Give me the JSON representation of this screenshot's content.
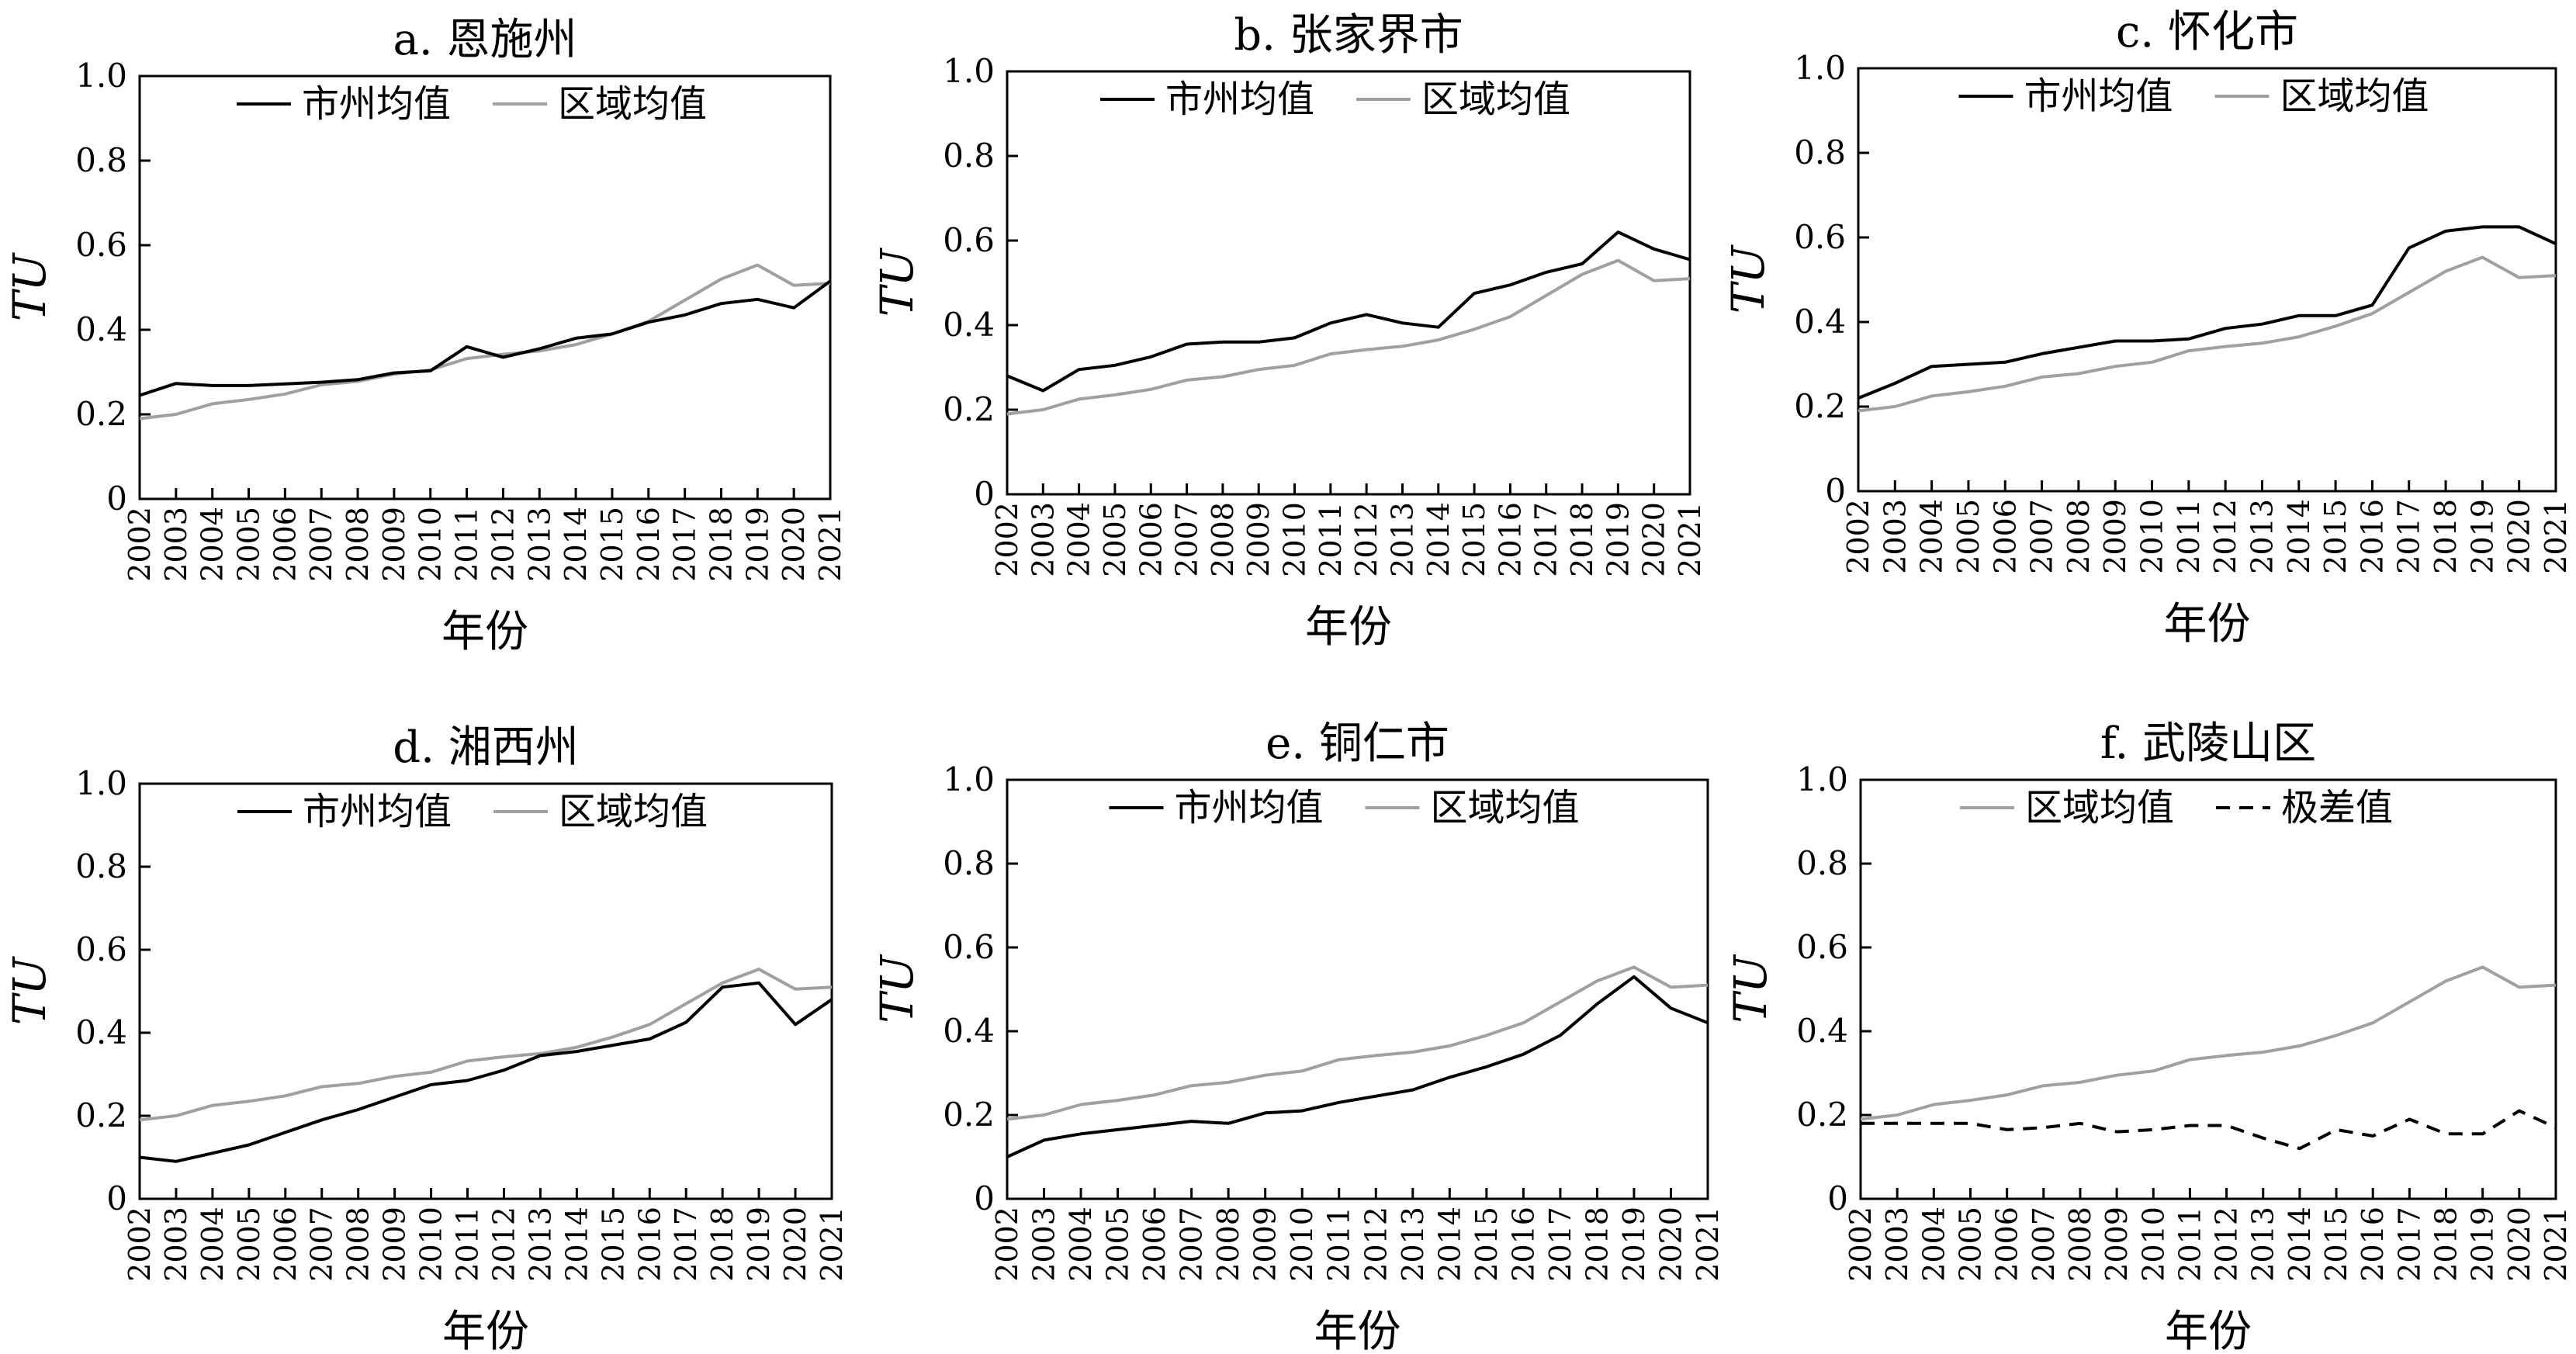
{
  "chart_data": [
    {
      "type": "line",
      "title": "a. 恩施州",
      "xlabel": "年份",
      "ylabel": "TU",
      "ylim": [
        0,
        1.0
      ],
      "yticks": [
        "0",
        "0.2",
        "0.4",
        "0.6",
        "0.8",
        "1.0"
      ],
      "x": [
        "2002",
        "2003",
        "2004",
        "2005",
        "2006",
        "2007",
        "2008",
        "2009",
        "2010",
        "2011",
        "2012",
        "2013",
        "2014",
        "2015",
        "2016",
        "2017",
        "2018",
        "2019",
        "2020",
        "2021"
      ],
      "legend_position": "top",
      "series": [
        {
          "name": "市州均值",
          "color": "#000000",
          "dash": "",
          "values": [
            0.245,
            0.273,
            0.268,
            0.268,
            0.272,
            0.276,
            0.282,
            0.298,
            0.303,
            0.36,
            0.335,
            0.355,
            0.38,
            0.39,
            0.418,
            0.435,
            0.462,
            0.472,
            0.452,
            0.515
          ]
        },
        {
          "name": "区域均值",
          "color": "#a0a0a0",
          "dash": "",
          "values": [
            0.19,
            0.2,
            0.225,
            0.235,
            0.248,
            0.27,
            0.278,
            0.295,
            0.305,
            0.332,
            0.342,
            0.35,
            0.365,
            0.39,
            0.42,
            0.47,
            0.52,
            0.553,
            0.505,
            0.51
          ]
        }
      ]
    },
    {
      "type": "line",
      "title": "b. 张家界市",
      "xlabel": "年份",
      "ylabel": "TU",
      "ylim": [
        0,
        1.0
      ],
      "yticks": [
        "0",
        "0.2",
        "0.4",
        "0.6",
        "0.8",
        "1.0"
      ],
      "x": [
        "2002",
        "2003",
        "2004",
        "2005",
        "2006",
        "2007",
        "2008",
        "2009",
        "2010",
        "2011",
        "2012",
        "2013",
        "2014",
        "2015",
        "2016",
        "2017",
        "2018",
        "2019",
        "2020",
        "2021"
      ],
      "legend_position": "top",
      "series": [
        {
          "name": "市州均值",
          "color": "#000000",
          "dash": "",
          "values": [
            0.28,
            0.245,
            0.295,
            0.305,
            0.325,
            0.355,
            0.36,
            0.36,
            0.37,
            0.405,
            0.425,
            0.405,
            0.395,
            0.475,
            0.495,
            0.525,
            0.545,
            0.62,
            0.58,
            0.555
          ]
        },
        {
          "name": "区域均值",
          "color": "#a0a0a0",
          "dash": "",
          "values": [
            0.19,
            0.2,
            0.225,
            0.235,
            0.248,
            0.27,
            0.278,
            0.295,
            0.305,
            0.332,
            0.342,
            0.35,
            0.365,
            0.39,
            0.42,
            0.47,
            0.52,
            0.553,
            0.505,
            0.51
          ]
        }
      ]
    },
    {
      "type": "line",
      "title": "c. 怀化市",
      "xlabel": "年份",
      "ylabel": "TU",
      "ylim": [
        0,
        1.0
      ],
      "yticks": [
        "0",
        "0.2",
        "0.4",
        "0.6",
        "0.8",
        "1.0"
      ],
      "x": [
        "2002",
        "2003",
        "2004",
        "2005",
        "2006",
        "2007",
        "2008",
        "2009",
        "2010",
        "2011",
        "2012",
        "2013",
        "2014",
        "2015",
        "2016",
        "2017",
        "2018",
        "2019",
        "2020",
        "2021"
      ],
      "legend_position": "top",
      "series": [
        {
          "name": "市州均值",
          "color": "#000000",
          "dash": "",
          "values": [
            0.22,
            0.255,
            0.295,
            0.3,
            0.305,
            0.325,
            0.34,
            0.355,
            0.355,
            0.36,
            0.385,
            0.395,
            0.415,
            0.415,
            0.44,
            0.575,
            0.615,
            0.625,
            0.625,
            0.585
          ]
        },
        {
          "name": "区域均值",
          "color": "#a0a0a0",
          "dash": "",
          "values": [
            0.19,
            0.2,
            0.225,
            0.235,
            0.248,
            0.27,
            0.278,
            0.295,
            0.305,
            0.332,
            0.342,
            0.35,
            0.365,
            0.39,
            0.42,
            0.47,
            0.52,
            0.553,
            0.505,
            0.51
          ]
        }
      ]
    },
    {
      "type": "line",
      "title": "d. 湘西州",
      "xlabel": "年份",
      "ylabel": "TU",
      "ylim": [
        0,
        1.0
      ],
      "yticks": [
        "0",
        "0.2",
        "0.4",
        "0.6",
        "0.8",
        "1.0"
      ],
      "x": [
        "2002",
        "2003",
        "2004",
        "2005",
        "2006",
        "2007",
        "2008",
        "2009",
        "2010",
        "2011",
        "2012",
        "2013",
        "2014",
        "2015",
        "2016",
        "2017",
        "2018",
        "2019",
        "2020",
        "2021"
      ],
      "legend_position": "top",
      "series": [
        {
          "name": "市州均值",
          "color": "#000000",
          "dash": "",
          "values": [
            0.1,
            0.09,
            0.11,
            0.13,
            0.16,
            0.19,
            0.215,
            0.245,
            0.275,
            0.285,
            0.31,
            0.345,
            0.355,
            0.37,
            0.385,
            0.425,
            0.51,
            0.52,
            0.42,
            0.48
          ]
        },
        {
          "name": "区域均值",
          "color": "#a0a0a0",
          "dash": "",
          "values": [
            0.19,
            0.2,
            0.225,
            0.235,
            0.248,
            0.27,
            0.278,
            0.295,
            0.305,
            0.332,
            0.342,
            0.35,
            0.365,
            0.39,
            0.42,
            0.47,
            0.52,
            0.553,
            0.505,
            0.51
          ]
        }
      ]
    },
    {
      "type": "line",
      "title": "e. 铜仁市",
      "xlabel": "年份",
      "ylabel": "TU",
      "ylim": [
        0,
        1.0
      ],
      "yticks": [
        "0",
        "0.2",
        "0.4",
        "0.6",
        "0.8",
        "1.0"
      ],
      "x": [
        "2002",
        "2003",
        "2004",
        "2005",
        "2006",
        "2007",
        "2008",
        "2009",
        "2010",
        "2011",
        "2012",
        "2013",
        "2014",
        "2015",
        "2016",
        "2017",
        "2018",
        "2019",
        "2020",
        "2021"
      ],
      "legend_position": "top",
      "series": [
        {
          "name": "市州均值",
          "color": "#000000",
          "dash": "",
          "values": [
            0.1,
            0.14,
            0.155,
            0.165,
            0.175,
            0.185,
            0.18,
            0.205,
            0.21,
            0.23,
            0.245,
            0.26,
            0.29,
            0.315,
            0.345,
            0.39,
            0.465,
            0.53,
            0.455,
            0.42
          ]
        },
        {
          "name": "区域均值",
          "color": "#a0a0a0",
          "dash": "",
          "values": [
            0.19,
            0.2,
            0.225,
            0.235,
            0.248,
            0.27,
            0.278,
            0.295,
            0.305,
            0.332,
            0.342,
            0.35,
            0.365,
            0.39,
            0.42,
            0.47,
            0.52,
            0.553,
            0.505,
            0.51
          ]
        }
      ]
    },
    {
      "type": "line",
      "title": "f. 武陵山区",
      "xlabel": "年份",
      "ylabel": "TU",
      "ylim": [
        0,
        1.0
      ],
      "yticks": [
        "0",
        "0.2",
        "0.4",
        "0.6",
        "0.8",
        "1.0"
      ],
      "x": [
        "2002",
        "2003",
        "2004",
        "2005",
        "2006",
        "2007",
        "2008",
        "2009",
        "2010",
        "2011",
        "2012",
        "2013",
        "2014",
        "2015",
        "2016",
        "2017",
        "2018",
        "2019",
        "2020",
        "2021"
      ],
      "legend_position": "top",
      "series": [
        {
          "name": "区域均值",
          "color": "#a0a0a0",
          "dash": "",
          "values": [
            0.19,
            0.2,
            0.225,
            0.235,
            0.248,
            0.27,
            0.278,
            0.295,
            0.305,
            0.332,
            0.342,
            0.35,
            0.365,
            0.39,
            0.42,
            0.47,
            0.52,
            0.553,
            0.505,
            0.51
          ]
        },
        {
          "name": "极差值",
          "color": "#000000",
          "dash": "18,12",
          "values": [
            0.18,
            0.18,
            0.18,
            0.18,
            0.165,
            0.17,
            0.18,
            0.16,
            0.165,
            0.175,
            0.175,
            0.145,
            0.12,
            0.165,
            0.15,
            0.19,
            0.155,
            0.155,
            0.21,
            0.17
          ]
        }
      ]
    }
  ]
}
